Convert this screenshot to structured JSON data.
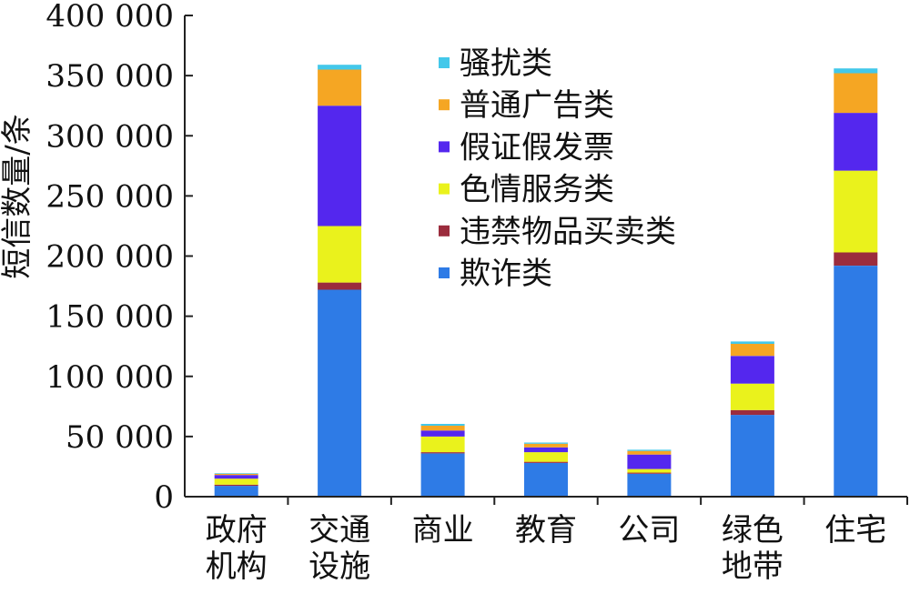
{
  "chart_data": {
    "type": "bar",
    "stacked": true,
    "title": "",
    "xlabel": "",
    "ylabel": "短信数量/条",
    "ylim": [
      0,
      400000
    ],
    "yticks": [
      0,
      50000,
      100000,
      150000,
      200000,
      250000,
      300000,
      350000,
      400000
    ],
    "ytick_labels": [
      "0",
      "50 000",
      "100 000",
      "150 000",
      "200 000",
      "250 000",
      "300 000",
      "350 000",
      "400 000"
    ],
    "grid": false,
    "legend_position": "top-center",
    "categories": [
      [
        "政府",
        "机构"
      ],
      [
        "交通",
        "设施"
      ],
      [
        "商业"
      ],
      [
        "教育"
      ],
      [
        "公司"
      ],
      [
        "绿色",
        "地带"
      ],
      [
        "住宅"
      ]
    ],
    "series": [
      {
        "name": "欺诈类",
        "color": "#2e7be6",
        "values": [
          9000,
          172000,
          36000,
          28000,
          19000,
          68000,
          192000
        ]
      },
      {
        "name": "违禁物品买卖类",
        "color": "#9b2c3d",
        "values": [
          1000,
          6000,
          1000,
          1000,
          1000,
          4000,
          11000
        ]
      },
      {
        "name": "色情服务类",
        "color": "#eaf21c",
        "values": [
          5000,
          47000,
          13000,
          8000,
          3000,
          22000,
          68000
        ]
      },
      {
        "name": "假证假发票",
        "color": "#5427ee",
        "values": [
          3000,
          100000,
          5000,
          4000,
          12000,
          23000,
          48000
        ]
      },
      {
        "name": "普通广告类",
        "color": "#f5a623",
        "values": [
          1000,
          30000,
          4000,
          3000,
          3000,
          10000,
          33000
        ]
      },
      {
        "name": "骚扰类",
        "color": "#43c8ea",
        "values": [
          500,
          4000,
          1500,
          1000,
          1000,
          2000,
          4000
        ]
      }
    ]
  }
}
